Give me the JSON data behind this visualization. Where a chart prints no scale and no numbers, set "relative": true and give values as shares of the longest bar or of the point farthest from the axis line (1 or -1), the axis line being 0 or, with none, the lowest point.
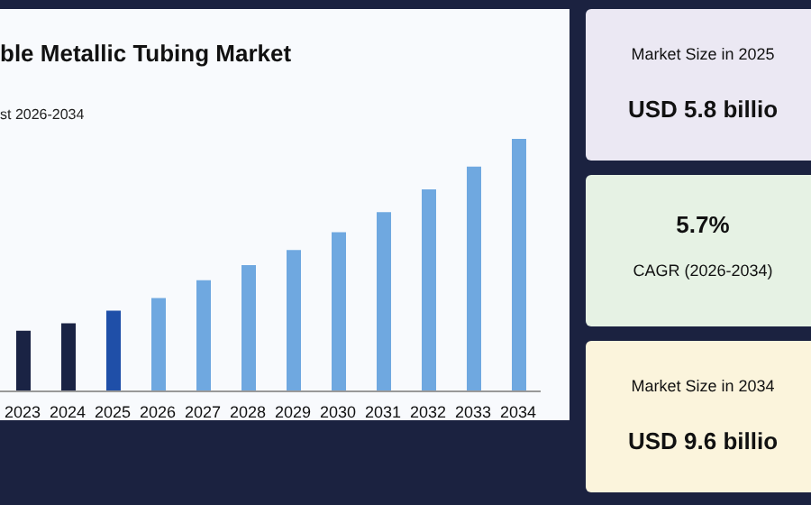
{
  "chart_data": [
    {
      "type": "bar",
      "title": "ble Metallic Tubing Market",
      "subtitle": "st 2026-2034",
      "relative": true,
      "categories": [
        "2023",
        "2024",
        "2025",
        "2026",
        "2027",
        "2028",
        "2029",
        "2030",
        "2031",
        "2032",
        "2033",
        "2034"
      ],
      "values": [
        0.24,
        0.27,
        0.32,
        0.37,
        0.44,
        0.5,
        0.56,
        0.63,
        0.71,
        0.8,
        0.89,
        1
      ],
      "colors": [
        "#1a2344",
        "#1a2344",
        "#1f4fa8",
        "#6fa8e0",
        "#6fa8e0",
        "#6fa8e0",
        "#6fa8e0",
        "#6fa8e0",
        "#6fa8e0",
        "#6fa8e0",
        "#6fa8e0",
        "#6fa8e0"
      ]
    },
    {
      "type": "other",
      "annotations": [
        "Market Size in 2025",
        "USD 5.8 billio",
        "5.7%",
        "CAGR (2026-2034)",
        "Market Size in 2034",
        "USD 9.6 billio"
      ]
    }
  ]
}
